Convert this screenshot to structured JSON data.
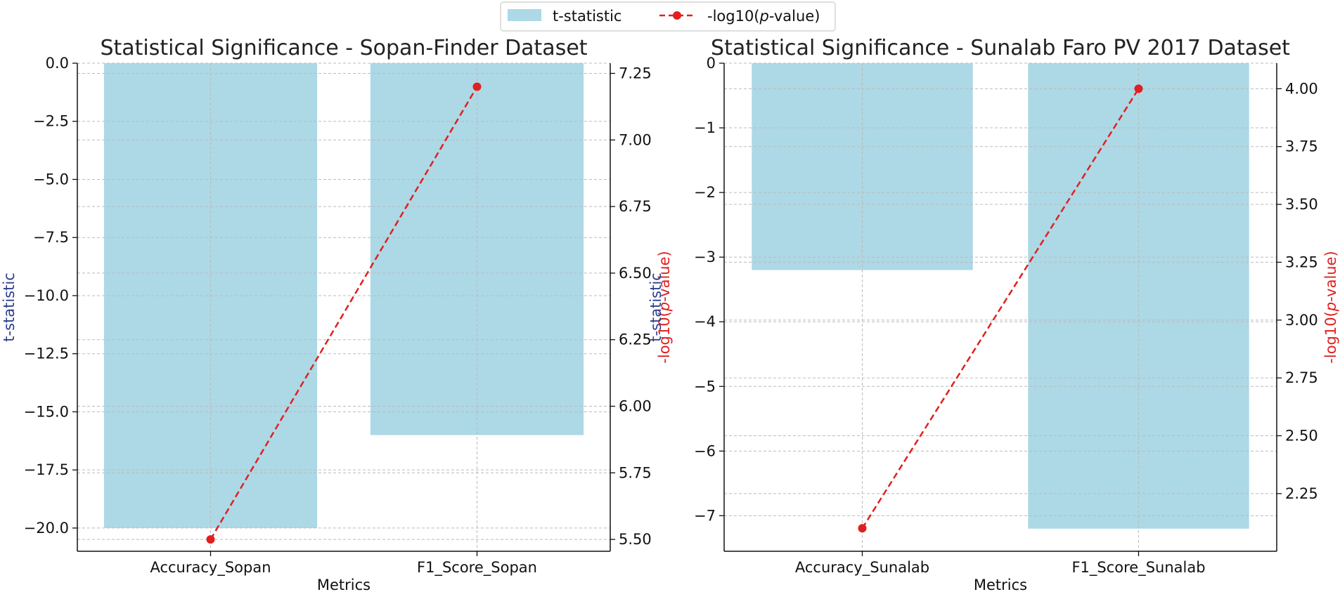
{
  "legend": {
    "bar_label": "t-statistic",
    "line_label": "-log10(p-value)",
    "line_label_prefix": "-log10(",
    "line_label_italic": "p",
    "line_label_suffix": "-value)"
  },
  "colors": {
    "bar": "#add8e6",
    "line": "#e02020",
    "left_label": "#2c3e8f",
    "grid": "#bbbbbb"
  },
  "chart_data": [
    {
      "type": "bar",
      "title": "Statistical Significance - Sopan-Finder Dataset",
      "xlabel": "Metrics",
      "ylabel": "t-statistic",
      "y2label": "-log10(p-value)",
      "categories": [
        "Accuracy_Sopan",
        "F1_Score_Sopan"
      ],
      "series": [
        {
          "name": "t-statistic",
          "axis": "left",
          "kind": "bar",
          "values": [
            -20.0,
            -16.0
          ]
        },
        {
          "name": "-log10(p-value)",
          "axis": "right",
          "kind": "line",
          "values": [
            5.5,
            7.2
          ]
        }
      ],
      "ylim": [
        -21.0,
        0.0
      ],
      "yticks": [
        0.0,
        -2.5,
        -5.0,
        -7.5,
        -10.0,
        -12.5,
        -15.0,
        -17.5,
        -20.0
      ],
      "ytick_labels": [
        "0.0",
        "−2.5",
        "−5.0",
        "−7.5",
        "−10.0",
        "−12.5",
        "−15.0",
        "−17.5",
        "−20.0"
      ],
      "y2lim": [
        5.4555,
        7.2882
      ],
      "y2ticks": [
        5.5,
        5.75,
        6.0,
        6.25,
        6.5,
        6.75,
        7.0,
        7.25
      ],
      "y2tick_labels": [
        "5.50",
        "5.75",
        "6.00",
        "6.25",
        "6.50",
        "6.75",
        "7.00",
        "7.25"
      ],
      "grid": true
    },
    {
      "type": "bar",
      "title": "Statistical Significance - Sunalab Faro PV 2017 Dataset",
      "xlabel": "Metrics",
      "ylabel": "t-statistic",
      "y2label": "-log10(p-value)",
      "categories": [
        "Accuracy_Sunalab",
        "F1_Score_Sunalab"
      ],
      "series": [
        {
          "name": "t-statistic",
          "axis": "left",
          "kind": "bar",
          "values": [
            -3.2,
            -7.2
          ]
        },
        {
          "name": "-log10(p-value)",
          "axis": "right",
          "kind": "line",
          "values": [
            2.1,
            4.0
          ]
        }
      ],
      "ylim": [
        -7.55,
        0.0
      ],
      "yticks": [
        0,
        -1,
        -2,
        -3,
        -4,
        -5,
        -6,
        -7
      ],
      "ytick_labels": [
        "0",
        "−1",
        "−2",
        "−3",
        "−4",
        "−5",
        "−6",
        "−7"
      ],
      "y2lim": [
        2.0007,
        4.1103
      ],
      "y2ticks": [
        2.25,
        2.5,
        2.75,
        3.0,
        3.25,
        3.5,
        3.75,
        4.0
      ],
      "y2tick_labels": [
        "2.25",
        "2.50",
        "2.75",
        "3.00",
        "3.25",
        "3.50",
        "3.75",
        "4.00"
      ],
      "grid": true
    }
  ]
}
